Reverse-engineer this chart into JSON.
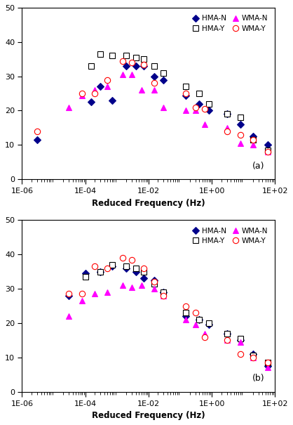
{
  "panel_a": {
    "HMA_N": {
      "x": [
        3e-06,
        0.00015,
        0.0003,
        0.0007,
        0.002,
        0.004,
        0.007,
        0.015,
        0.03,
        0.15,
        0.4,
        0.8,
        3.0,
        8.0,
        20.0,
        60.0
      ],
      "y": [
        11.5,
        22.5,
        27,
        23,
        33,
        33,
        33,
        30,
        29,
        24.5,
        22,
        20,
        19,
        16,
        12.5,
        10
      ],
      "color": "#00008B",
      "marker": "D",
      "markersize": 5,
      "label": "HMA-N"
    },
    "HMA_Y": {
      "x": [
        0.00015,
        0.0003,
        0.0007,
        0.002,
        0.004,
        0.007,
        0.015,
        0.03,
        0.15,
        0.4,
        0.8,
        3.0,
        8.0,
        20.0,
        60.0
      ],
      "y": [
        33,
        36.5,
        36,
        36,
        35.5,
        35,
        33,
        31,
        27,
        25,
        22,
        19,
        18,
        11.5,
        8.5
      ],
      "color": "#000000",
      "marker": "s",
      "markerfacecolor": "white",
      "markeredgecolor": "#000000",
      "markersize": 6,
      "label": "HMA-Y"
    },
    "WMA_N": {
      "x": [
        3e-05,
        8e-05,
        0.0002,
        0.0005,
        0.0015,
        0.003,
        0.006,
        0.015,
        0.03,
        0.15,
        0.3,
        0.6,
        3.0,
        8.0,
        20.0,
        60.0
      ],
      "y": [
        21,
        24.5,
        26,
        27,
        30.5,
        30.5,
        26,
        26,
        21,
        20,
        20,
        16,
        15,
        10.5,
        10,
        8
      ],
      "color": "#FF00FF",
      "marker": "^",
      "markersize": 6,
      "label": "WMA-N"
    },
    "WMA_Y": {
      "x": [
        3e-06,
        8e-05,
        0.0002,
        0.0005,
        0.0015,
        0.003,
        0.007,
        0.015,
        0.15,
        0.3,
        0.6,
        3.0,
        8.0,
        20.0,
        60.0
      ],
      "y": [
        14,
        25,
        25,
        29,
        34.5,
        34,
        33.5,
        28,
        25,
        21,
        20.5,
        14,
        13,
        11.5,
        8
      ],
      "color": "#FF0000",
      "marker": "o",
      "markerfacecolor": "white",
      "markeredgecolor": "#FF0000",
      "markersize": 6,
      "label": "WMA-Y"
    }
  },
  "panel_b": {
    "HMA_N": {
      "x": [
        3e-05,
        0.0001,
        0.0003,
        0.0007,
        0.002,
        0.004,
        0.007,
        0.015,
        0.03,
        0.15,
        0.4,
        0.8,
        3.0,
        8.0,
        20.0,
        60.0
      ],
      "y": [
        28,
        34.5,
        35,
        36.5,
        36,
        35,
        33,
        32.5,
        29,
        22,
        21,
        19.5,
        17,
        15,
        11,
        7.5
      ],
      "color": "#00008B",
      "marker": "D",
      "markersize": 5,
      "label": "HMA-N"
    },
    "HMA_Y": {
      "x": [
        0.0001,
        0.0003,
        0.0007,
        0.002,
        0.004,
        0.007,
        0.015,
        0.03,
        0.15,
        0.4,
        0.8,
        3.0,
        8.0,
        20.0,
        60.0
      ],
      "y": [
        33.5,
        35,
        37,
        36.5,
        36,
        35,
        31.5,
        29,
        23,
        21,
        20,
        17,
        15.5,
        10.5,
        8.5
      ],
      "color": "#000000",
      "marker": "s",
      "markerfacecolor": "white",
      "markeredgecolor": "#000000",
      "markersize": 6,
      "label": "HMA-Y"
    },
    "WMA_N": {
      "x": [
        3e-05,
        8e-05,
        0.0002,
        0.0005,
        0.0015,
        0.003,
        0.006,
        0.015,
        0.03,
        0.15,
        0.3,
        0.6,
        3.0,
        8.0,
        20.0,
        60.0
      ],
      "y": [
        22,
        26.5,
        28.5,
        29,
        31,
        30.5,
        31,
        30,
        28,
        21,
        19.5,
        17,
        15,
        14.5,
        10,
        7
      ],
      "color": "#FF00FF",
      "marker": "^",
      "markersize": 6,
      "label": "WMA-N"
    },
    "WMA_Y": {
      "x": [
        3e-05,
        8e-05,
        0.0002,
        0.0005,
        0.0015,
        0.003,
        0.007,
        0.015,
        0.03,
        0.15,
        0.3,
        0.6,
        3.0,
        8.0,
        20.0,
        60.0
      ],
      "y": [
        28.5,
        28.5,
        36.5,
        36,
        39,
        38.5,
        36,
        32,
        28,
        25,
        23,
        16,
        15,
        11,
        10,
        8.5
      ],
      "color": "#FF0000",
      "marker": "o",
      "markerfacecolor": "white",
      "markeredgecolor": "#FF0000",
      "markersize": 6,
      "label": "WMA-Y"
    }
  },
  "xlabel": "Reduced Frequency (Hz)",
  "ylim": [
    0,
    50
  ],
  "yticks": [
    0,
    10,
    20,
    30,
    40,
    50
  ],
  "xtick_labels": [
    "1E-06",
    "1E-04",
    "1E-02",
    "1E+00",
    "1E+02"
  ],
  "xtick_vals": [
    1e-06,
    0.0001,
    0.01,
    1.0,
    100.0
  ],
  "label_a": "(a)",
  "label_b": "(b)"
}
